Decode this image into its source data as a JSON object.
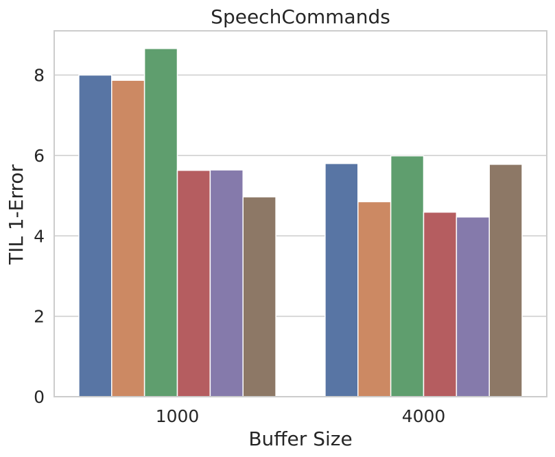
{
  "chart_data": {
    "type": "bar",
    "title": "SpeechCommands",
    "xlabel": "Buffer Size",
    "ylabel": "TIL 1-Error",
    "categories": [
      "1000",
      "4000"
    ],
    "ylim": [
      0,
      9.1
    ],
    "yticks": [
      0,
      2,
      4,
      6,
      8
    ],
    "grid": "horizontal",
    "legend": "none",
    "series": [
      {
        "color": "#5875a4",
        "values": [
          8.0,
          5.8
        ]
      },
      {
        "color": "#cc8963",
        "values": [
          7.87,
          4.85
        ]
      },
      {
        "color": "#5f9e6e",
        "values": [
          8.66,
          5.99
        ]
      },
      {
        "color": "#b55d60",
        "values": [
          5.63,
          4.59
        ]
      },
      {
        "color": "#857aab",
        "values": [
          5.64,
          4.47
        ]
      },
      {
        "color": "#8d7866",
        "values": [
          4.97,
          5.78
        ]
      }
    ]
  }
}
